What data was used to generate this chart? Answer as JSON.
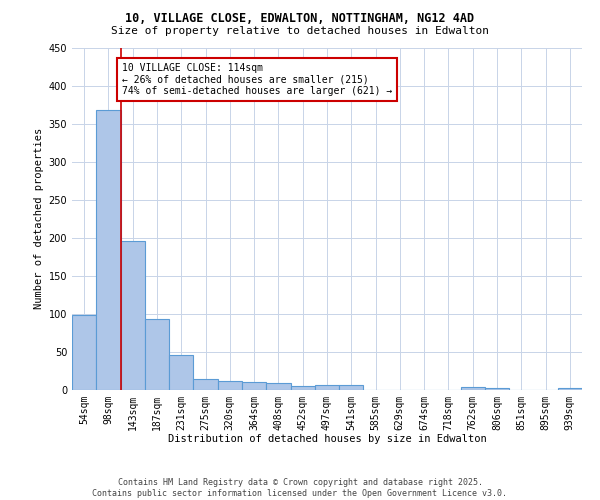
{
  "title_line1": "10, VILLAGE CLOSE, EDWALTON, NOTTINGHAM, NG12 4AD",
  "title_line2": "Size of property relative to detached houses in Edwalton",
  "xlabel": "Distribution of detached houses by size in Edwalton",
  "ylabel": "Number of detached properties",
  "categories": [
    "54sqm",
    "98sqm",
    "143sqm",
    "187sqm",
    "231sqm",
    "275sqm",
    "320sqm",
    "364sqm",
    "408sqm",
    "452sqm",
    "497sqm",
    "541sqm",
    "585sqm",
    "629sqm",
    "674sqm",
    "718sqm",
    "762sqm",
    "806sqm",
    "851sqm",
    "895sqm",
    "939sqm"
  ],
  "values": [
    99,
    368,
    196,
    93,
    46,
    15,
    12,
    10,
    9,
    5,
    6,
    6,
    0,
    0,
    0,
    0,
    4,
    3,
    0,
    0,
    2
  ],
  "bar_color": "#aec6e8",
  "bar_edge_color": "#5b9bd5",
  "background_color": "#ffffff",
  "grid_color": "#c8d4e8",
  "red_line_x": 1.5,
  "annotation_text": "10 VILLAGE CLOSE: 114sqm\n← 26% of detached houses are smaller (215)\n74% of semi-detached houses are larger (621) →",
  "annotation_box_color": "#ffffff",
  "annotation_box_edge": "#cc0000",
  "footnote": "Contains HM Land Registry data © Crown copyright and database right 2025.\nContains public sector information licensed under the Open Government Licence v3.0.",
  "ylim": [
    0,
    450
  ],
  "yticks": [
    0,
    50,
    100,
    150,
    200,
    250,
    300,
    350,
    400,
    450
  ],
  "figsize": [
    6.0,
    5.0
  ],
  "dpi": 100
}
